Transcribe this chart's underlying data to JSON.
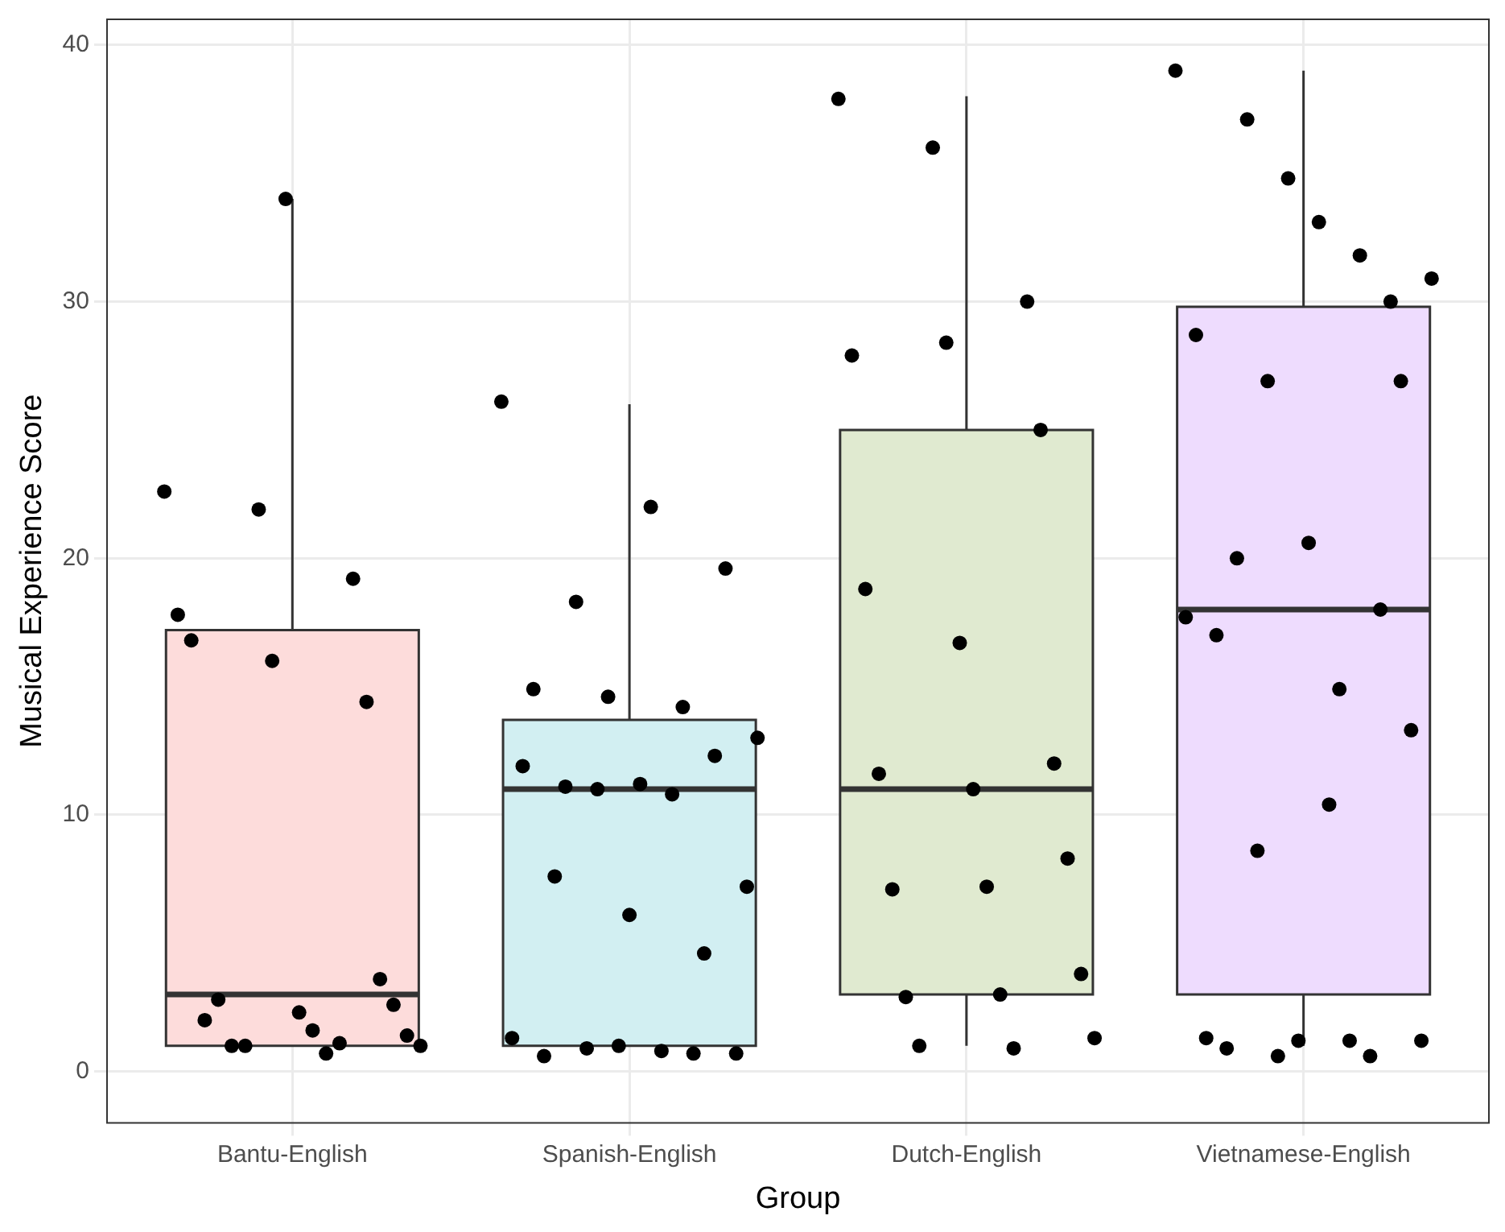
{
  "chart_data": {
    "type": "box",
    "xlabel": "Group",
    "ylabel": "Musical Experience Score",
    "categories": [
      "Bantu-English",
      "Spanish-English",
      "Dutch-English",
      "Vietnamese-English"
    ],
    "colors": [
      "#fddcdb",
      "#d2eff2",
      "#e0ead0",
      "#eedcfe"
    ],
    "boxes": [
      {
        "low": 1,
        "q1": 1,
        "median": 3,
        "q3": 17.2,
        "high": 34
      },
      {
        "low": 1,
        "q1": 1,
        "median": 11,
        "q3": 13.7,
        "high": 26
      },
      {
        "low": 1,
        "q1": 3,
        "median": 11,
        "q3": 25,
        "high": 38
      },
      {
        "low": 1,
        "q1": 3,
        "median": 18,
        "q3": 29.8,
        "high": 39
      }
    ],
    "series": [
      {
        "type": "scatter",
        "color": "#000000",
        "x": [
          "Bantu-English",
          "Bantu-English",
          "Bantu-English",
          "Bantu-English",
          "Bantu-English",
          "Bantu-English",
          "Bantu-English",
          "Bantu-English",
          "Bantu-English",
          "Bantu-English",
          "Bantu-English",
          "Bantu-English",
          "Bantu-English",
          "Bantu-English",
          "Bantu-English",
          "Bantu-English",
          "Bantu-English",
          "Bantu-English",
          "Bantu-English",
          "Bantu-English"
        ],
        "values": [
          22.6,
          21.9,
          19.2,
          17.8,
          16.0,
          14.4,
          16.8,
          34.0,
          3.6,
          2.0,
          2.3,
          2.6,
          2.8,
          1.6,
          1.4,
          1.0,
          0.7,
          1.0,
          1.0,
          1.1
        ]
      },
      {
        "type": "scatter",
        "color": "#000000",
        "x": [
          "Spanish-English",
          "Spanish-English",
          "Spanish-English",
          "Spanish-English",
          "Spanish-English",
          "Spanish-English",
          "Spanish-English",
          "Spanish-English",
          "Spanish-English",
          "Spanish-English",
          "Spanish-English",
          "Spanish-English",
          "Spanish-English",
          "Spanish-English",
          "Spanish-English",
          "Spanish-English",
          "Spanish-English",
          "Spanish-English",
          "Spanish-English",
          "Spanish-English",
          "Spanish-English",
          "Spanish-English",
          "Spanish-English",
          "Spanish-English",
          "Spanish-English"
        ],
        "values": [
          26.1,
          18.3,
          22.0,
          19.6,
          14.9,
          14.6,
          14.2,
          13.0,
          11.1,
          11.2,
          12.3,
          11.9,
          11.0,
          10.8,
          7.2,
          7.6,
          6.1,
          4.6,
          1.3,
          0.9,
          0.8,
          0.7,
          0.6,
          1.0,
          0.7
        ]
      },
      {
        "type": "scatter",
        "color": "#000000",
        "x": [
          "Dutch-English",
          "Dutch-English",
          "Dutch-English",
          "Dutch-English",
          "Dutch-English",
          "Dutch-English",
          "Dutch-English",
          "Dutch-English",
          "Dutch-English",
          "Dutch-English",
          "Dutch-English",
          "Dutch-English",
          "Dutch-English",
          "Dutch-English",
          "Dutch-English",
          "Dutch-English",
          "Dutch-English",
          "Dutch-English",
          "Dutch-English",
          "Dutch-English"
        ],
        "values": [
          37.9,
          36.0,
          30.0,
          27.9,
          28.4,
          25.0,
          18.8,
          16.7,
          12.0,
          11.6,
          11.0,
          8.3,
          7.1,
          7.2,
          3.8,
          2.9,
          3.0,
          1.3,
          1.0,
          0.9
        ]
      },
      {
        "type": "scatter",
        "color": "#000000",
        "x": [
          "Vietnamese-English",
          "Vietnamese-English",
          "Vietnamese-English",
          "Vietnamese-English",
          "Vietnamese-English",
          "Vietnamese-English",
          "Vietnamese-English",
          "Vietnamese-English",
          "Vietnamese-English",
          "Vietnamese-English",
          "Vietnamese-English",
          "Vietnamese-English",
          "Vietnamese-English",
          "Vietnamese-English",
          "Vietnamese-English",
          "Vietnamese-English",
          "Vietnamese-English",
          "Vietnamese-English",
          "Vietnamese-English",
          "Vietnamese-English",
          "Vietnamese-English",
          "Vietnamese-English",
          "Vietnamese-English",
          "Vietnamese-English",
          "Vietnamese-English",
          "Vietnamese-English"
        ],
        "values": [
          39.0,
          37.1,
          33.1,
          30.0,
          28.7,
          26.9,
          14.9,
          13.3,
          17.0,
          34.8,
          31.8,
          30.9,
          20.0,
          20.6,
          18.0,
          17.7,
          8.6,
          10.4,
          26.9,
          1.3,
          0.6,
          1.2,
          1.2,
          0.9,
          1.2,
          0.6
        ]
      }
    ],
    "ylim": [
      -2,
      41
    ],
    "yticks": [
      0,
      10,
      20,
      30,
      40
    ],
    "grid": true,
    "legend": false,
    "marker": "circle"
  }
}
